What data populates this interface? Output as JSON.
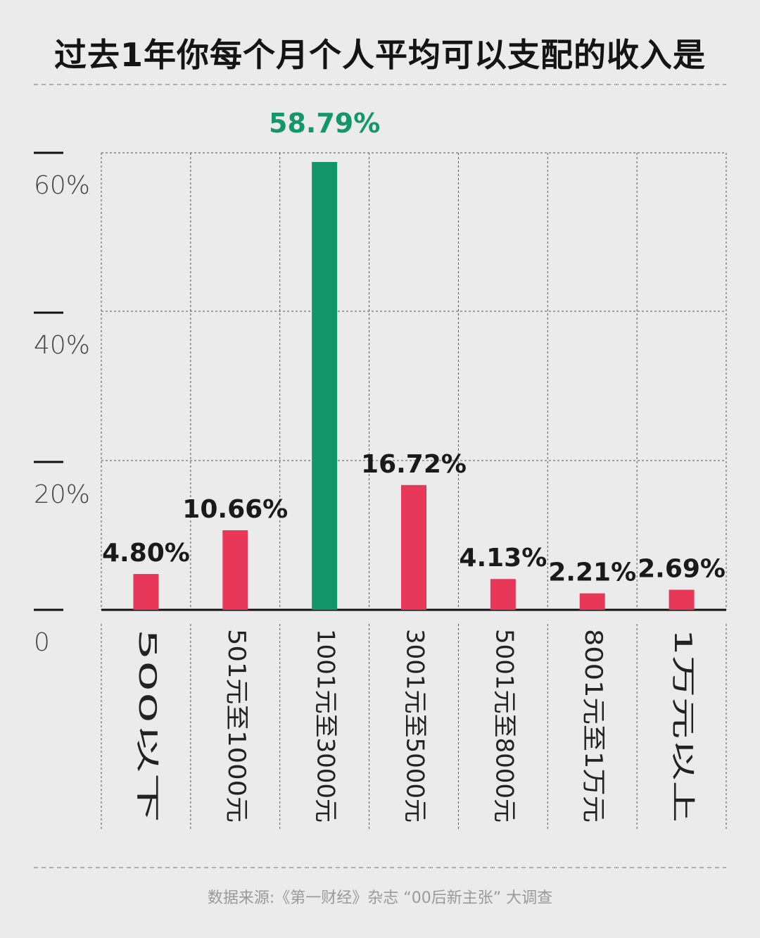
{
  "title": "过去1年你每个月个人平均可以支配的收入是",
  "source": "数据来源:《第一财经》杂志 “00后新主张” 大调查",
  "chart_data": {
    "type": "bar",
    "categories": [
      "500以下",
      "501元至1000元",
      "1001元至3000元",
      "3001元至5000元",
      "5001元至8000元",
      "8001元至1万元",
      "1万元以上"
    ],
    "values": [
      4.8,
      10.66,
      58.79,
      16.72,
      4.13,
      2.21,
      2.69
    ],
    "value_labels": [
      "4.80%",
      "10.66%",
      "58.79%",
      "16.72%",
      "4.13%",
      "2.21%",
      "2.69%"
    ],
    "ylim": [
      0,
      60
    ],
    "y_ticks": [
      0,
      20,
      40,
      60
    ],
    "y_tick_labels": [
      "0",
      "20%",
      "40%",
      "60%"
    ],
    "highlight_index": 2,
    "colors": {
      "bar": "#e8385a",
      "highlight": "#12966a",
      "label": "#1a1a1a",
      "highlight_label": "#12966a",
      "grid": "#555555",
      "tick": "#444444"
    },
    "grid": true
  }
}
